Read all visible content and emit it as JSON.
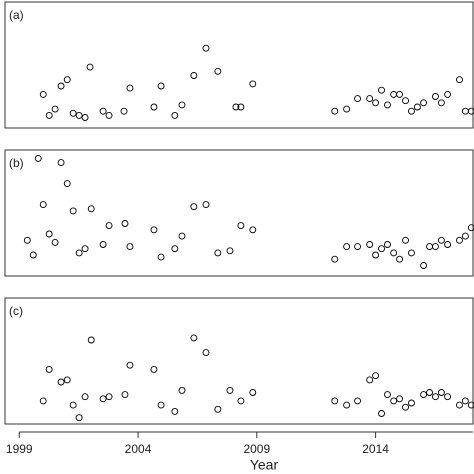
{
  "chart_data": [
    {
      "type": "scatter",
      "label": "(a)",
      "color": "#000000",
      "xlim": [
        1998.4,
        2018.1
      ],
      "ylim": [
        0,
        6
      ],
      "x": [
        2000.01,
        2000.26,
        2000.51,
        2000.76,
        2001.02,
        2001.27,
        2001.52,
        2001.77,
        2001.98,
        2002.53,
        2002.78,
        2003.41,
        2003.66,
        2004.67,
        2004.97,
        2005.55,
        2005.85,
        2006.35,
        2006.86,
        2007.36,
        2008.12,
        2008.33,
        2008.83,
        2012.28,
        2012.78,
        2013.24,
        2013.75,
        2014.0,
        2014.25,
        2014.5,
        2014.76,
        2015.01,
        2015.26,
        2015.51,
        2015.76,
        2016.02,
        2016.52,
        2016.77,
        2017.03,
        2017.53,
        2017.78,
        2018.03
      ],
      "values": [
        1.6,
        0.6,
        0.9,
        2.0,
        2.3,
        0.7,
        0.6,
        0.5,
        2.9,
        0.8,
        0.6,
        0.8,
        1.9,
        1.0,
        2.0,
        0.6,
        1.1,
        2.5,
        3.8,
        2.7,
        1.0,
        1.0,
        2.1,
        0.8,
        0.9,
        1.4,
        1.4,
        1.2,
        1.8,
        1.1,
        1.6,
        1.6,
        1.3,
        0.8,
        1.0,
        1.2,
        1.5,
        1.2,
        1.6,
        2.3,
        0.8,
        0.8
      ]
    },
    {
      "type": "scatter",
      "label": "(b)",
      "color": "#000000",
      "xlim": [
        1998.4,
        2018.1
      ],
      "ylim": [
        0,
        6
      ],
      "x": [
        1999.34,
        1999.59,
        1999.8,
        2000.01,
        2000.26,
        2000.51,
        2000.76,
        2001.02,
        2001.27,
        2001.52,
        2001.77,
        2002.03,
        2002.53,
        2002.78,
        2003.45,
        2003.66,
        2004.67,
        2004.97,
        2005.55,
        2005.85,
        2006.35,
        2006.86,
        2007.36,
        2007.87,
        2008.33,
        2008.83,
        2012.28,
        2012.78,
        2013.24,
        2013.75,
        2014.0,
        2014.25,
        2014.5,
        2014.76,
        2015.01,
        2015.26,
        2015.51,
        2016.02,
        2016.27,
        2016.52,
        2016.77,
        2017.03,
        2017.53,
        2017.78,
        2018.03
      ],
      "values": [
        1.7,
        1.0,
        5.6,
        3.4,
        2.0,
        1.6,
        5.4,
        4.4,
        3.1,
        1.1,
        1.3,
        3.2,
        1.5,
        2.4,
        2.5,
        1.4,
        2.2,
        0.9,
        1.3,
        1.9,
        3.3,
        3.4,
        1.1,
        1.2,
        2.4,
        2.2,
        0.8,
        1.4,
        1.4,
        1.5,
        1.0,
        1.3,
        1.5,
        1.1,
        0.8,
        1.7,
        1.1,
        0.5,
        1.4,
        1.4,
        1.7,
        1.5,
        1.7,
        1.9,
        2.3
      ]
    },
    {
      "type": "scatter",
      "label": "(c)",
      "color": "#000000",
      "xlim": [
        1998.4,
        2018.1
      ],
      "ylim": [
        0,
        6
      ],
      "xticks": [
        1999,
        2004,
        2009,
        2014
      ],
      "xlabel": "Year",
      "x": [
        2000.01,
        2000.26,
        2000.76,
        2001.02,
        2001.27,
        2001.52,
        2001.77,
        2002.03,
        2002.53,
        2002.78,
        2003.45,
        2003.66,
        2004.67,
        2004.97,
        2005.55,
        2005.85,
        2006.35,
        2006.86,
        2007.36,
        2007.87,
        2008.33,
        2008.83,
        2012.28,
        2012.78,
        2013.24,
        2013.75,
        2014.0,
        2014.25,
        2014.5,
        2014.76,
        2015.01,
        2015.26,
        2015.51,
        2016.02,
        2016.27,
        2016.52,
        2016.77,
        2017.03,
        2017.53,
        2017.78,
        2018.03
      ],
      "values": [
        1.1,
        2.6,
        2.0,
        2.1,
        0.9,
        0.3,
        1.3,
        4.0,
        1.2,
        1.3,
        1.4,
        2.8,
        2.6,
        0.9,
        0.6,
        1.6,
        4.1,
        3.4,
        0.7,
        1.6,
        1.1,
        1.5,
        1.1,
        0.9,
        1.1,
        2.1,
        2.3,
        0.5,
        1.4,
        1.1,
        1.2,
        0.8,
        1.0,
        1.4,
        1.5,
        1.3,
        1.5,
        1.3,
        0.9,
        1.1,
        0.9
      ]
    }
  ]
}
